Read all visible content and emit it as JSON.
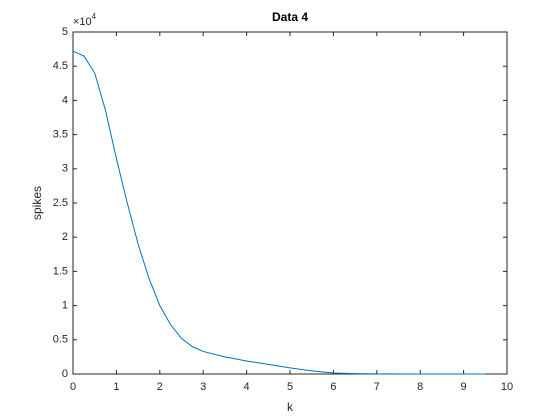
{
  "chart_data": {
    "type": "line",
    "title": "Data 4",
    "x_label": "k",
    "y_label": "spikes",
    "y_multiplier": {
      "base": "×10",
      "exponent": "4"
    },
    "x": [
      0,
      0.25,
      0.5,
      0.75,
      1,
      1.25,
      1.5,
      1.75,
      2,
      2.25,
      2.5,
      2.75,
      3,
      3.5,
      4,
      4.5,
      5,
      5.5,
      6,
      6.5,
      7,
      8,
      9,
      9.5
    ],
    "series": [
      {
        "color": "#0072bd",
        "values": [
          47200,
          46500,
          44000,
          38500,
          31500,
          25000,
          19000,
          14000,
          10000,
          7200,
          5200,
          4000,
          3300,
          2500,
          1900,
          1400,
          900,
          450,
          150,
          50,
          10,
          0,
          0,
          0
        ]
      }
    ],
    "xlim": [
      0,
      10
    ],
    "xticks": [
      0,
      1,
      2,
      3,
      4,
      5,
      6,
      7,
      8,
      9,
      10
    ],
    "ylim": [
      0,
      50000
    ],
    "yticks": [
      {
        "value": 0,
        "label": "0"
      },
      {
        "value": 5000,
        "label": "0.5"
      },
      {
        "value": 10000,
        "label": "1"
      },
      {
        "value": 15000,
        "label": "1.5"
      },
      {
        "value": 20000,
        "label": "2"
      },
      {
        "value": 25000,
        "label": "2.5"
      },
      {
        "value": 30000,
        "label": "3"
      },
      {
        "value": 35000,
        "label": "3.5"
      },
      {
        "value": 40000,
        "label": "4"
      },
      {
        "value": 45000,
        "label": "4.5"
      },
      {
        "value": 50000,
        "label": "5"
      }
    ],
    "grid": false
  }
}
